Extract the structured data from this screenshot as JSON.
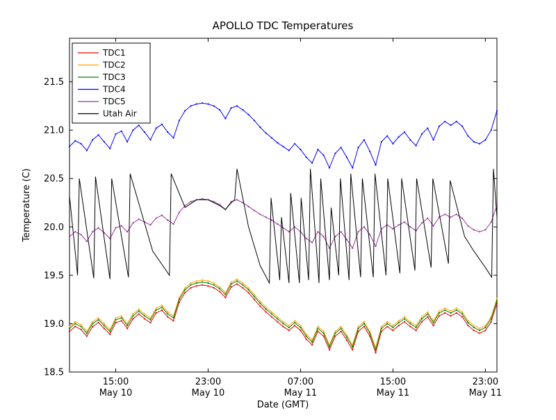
{
  "chart_data": {
    "type": "line",
    "title": "APOLLO TDC Temperatures",
    "xlabel": "Date (GMT)",
    "ylabel": "Temperature (C)",
    "x_unit": "hours from first sample shown",
    "xlim": [
      0,
      37
    ],
    "ylim": [
      18.5,
      21.95
    ],
    "grid": false,
    "legend_position": "upper left",
    "yticks": [
      18.5,
      19.0,
      19.5,
      20.0,
      20.5,
      21.0,
      21.5
    ],
    "xticks": [
      {
        "x": 4,
        "time": "15:00",
        "date": "May 10"
      },
      {
        "x": 12,
        "time": "23:00",
        "date": "May 10"
      },
      {
        "x": 20,
        "time": "07:00",
        "date": "May 11"
      },
      {
        "x": 28,
        "time": "15:00",
        "date": "May 11"
      },
      {
        "x": 36,
        "time": "23:00",
        "date": "May 11"
      }
    ],
    "series": [
      {
        "name": "TDC1",
        "color": "#e00000",
        "markers": true,
        "x": {
          "start": 0,
          "step": 0.5,
          "count": 75
        },
        "y": [
          18.92,
          18.97,
          18.94,
          18.87,
          18.97,
          19.01,
          18.95,
          18.89,
          19.01,
          19.03,
          18.95,
          19.05,
          19.1,
          19.05,
          19.01,
          19.11,
          19.14,
          19.07,
          19.03,
          19.22,
          19.32,
          19.37,
          19.39,
          19.4,
          19.39,
          19.37,
          19.33,
          19.27,
          19.38,
          19.41,
          19.37,
          19.32,
          19.25,
          19.18,
          19.12,
          19.07,
          19.02,
          18.97,
          18.93,
          18.98,
          18.93,
          18.84,
          18.78,
          18.92,
          18.87,
          18.73,
          18.87,
          18.92,
          18.83,
          18.73,
          18.92,
          18.97,
          18.87,
          18.7,
          18.92,
          18.97,
          18.93,
          18.98,
          19.02,
          18.97,
          18.93,
          19.02,
          19.07,
          18.98,
          19.08,
          19.11,
          19.08,
          19.11,
          19.07,
          18.98,
          18.93,
          18.9,
          18.93,
          19.02,
          19.21
        ]
      },
      {
        "name": "TDC2",
        "color": "#ffa500",
        "markers": true,
        "x": {
          "start": 0,
          "step": 0.5,
          "count": 75
        },
        "y": [
          18.97,
          19.02,
          18.99,
          18.92,
          19.02,
          19.06,
          19.0,
          18.94,
          19.06,
          19.08,
          19.0,
          19.1,
          19.15,
          19.1,
          19.06,
          19.16,
          19.19,
          19.12,
          19.08,
          19.27,
          19.37,
          19.42,
          19.44,
          19.45,
          19.44,
          19.42,
          19.38,
          19.32,
          19.43,
          19.46,
          19.42,
          19.37,
          19.3,
          19.23,
          19.17,
          19.12,
          19.07,
          19.02,
          18.98,
          19.03,
          18.98,
          18.89,
          18.83,
          18.97,
          18.92,
          18.78,
          18.92,
          18.97,
          18.88,
          18.78,
          18.97,
          19.02,
          18.92,
          18.75,
          18.97,
          19.02,
          18.98,
          19.03,
          19.07,
          19.02,
          18.98,
          19.07,
          19.12,
          19.03,
          19.13,
          19.16,
          19.13,
          19.16,
          19.12,
          19.03,
          18.98,
          18.95,
          18.98,
          19.07,
          19.26
        ]
      },
      {
        "name": "TDC3",
        "color": "#008000",
        "markers": true,
        "x": {
          "start": 0,
          "step": 0.5,
          "count": 75
        },
        "y": [
          18.95,
          19.0,
          18.97,
          18.9,
          19.0,
          19.04,
          18.98,
          18.92,
          19.04,
          19.06,
          18.98,
          19.08,
          19.13,
          19.08,
          19.04,
          19.14,
          19.17,
          19.1,
          19.06,
          19.25,
          19.35,
          19.4,
          19.42,
          19.43,
          19.42,
          19.4,
          19.36,
          19.3,
          19.41,
          19.44,
          19.4,
          19.35,
          19.28,
          19.21,
          19.15,
          19.1,
          19.05,
          19.0,
          18.96,
          19.01,
          18.96,
          18.87,
          18.81,
          18.95,
          18.9,
          18.76,
          18.9,
          18.95,
          18.86,
          18.76,
          18.95,
          19.0,
          18.9,
          18.73,
          18.95,
          19.0,
          18.96,
          19.01,
          19.05,
          19.0,
          18.96,
          19.05,
          19.1,
          19.01,
          19.11,
          19.14,
          19.11,
          19.14,
          19.1,
          19.01,
          18.96,
          18.93,
          18.96,
          19.05,
          19.24
        ]
      },
      {
        "name": "TDC4",
        "color": "#0000ff",
        "markers": true,
        "x": {
          "start": 0,
          "step": 0.5,
          "count": 75
        },
        "y": [
          20.83,
          20.89,
          20.86,
          20.79,
          20.9,
          20.95,
          20.88,
          20.81,
          20.96,
          20.99,
          20.88,
          21.0,
          21.05,
          20.98,
          20.9,
          21.02,
          21.06,
          20.98,
          20.92,
          21.1,
          21.2,
          21.25,
          21.27,
          21.28,
          21.27,
          21.25,
          21.21,
          21.12,
          21.23,
          21.25,
          21.21,
          21.16,
          21.1,
          21.03,
          20.97,
          20.92,
          20.87,
          20.83,
          20.79,
          20.86,
          20.8,
          20.72,
          20.66,
          20.8,
          20.74,
          20.61,
          20.76,
          20.82,
          20.72,
          20.61,
          20.82,
          20.9,
          20.78,
          20.64,
          20.88,
          20.94,
          20.86,
          20.93,
          20.98,
          20.9,
          20.84,
          20.96,
          21.02,
          20.9,
          21.04,
          21.09,
          21.05,
          21.09,
          21.04,
          20.94,
          20.88,
          20.86,
          20.9,
          21.0,
          21.2
        ]
      },
      {
        "name": "TDC5",
        "color": "#993399",
        "markers": true,
        "x": {
          "start": 0,
          "step": 0.5,
          "count": 75
        },
        "y": [
          19.9,
          19.95,
          19.92,
          19.85,
          19.95,
          19.99,
          19.94,
          19.88,
          19.99,
          20.01,
          19.95,
          20.04,
          20.08,
          20.05,
          20.02,
          20.09,
          20.12,
          20.07,
          20.03,
          20.15,
          20.22,
          20.26,
          20.28,
          20.29,
          20.28,
          20.26,
          20.23,
          20.18,
          20.26,
          20.28,
          20.25,
          20.21,
          20.17,
          20.13,
          20.1,
          20.07,
          20.03,
          19.99,
          19.95,
          20.0,
          19.95,
          19.88,
          19.84,
          19.95,
          19.9,
          19.78,
          19.9,
          19.95,
          19.87,
          19.78,
          19.95,
          20.0,
          19.92,
          19.8,
          19.98,
          20.02,
          19.98,
          20.02,
          20.05,
          20.0,
          19.96,
          20.04,
          20.09,
          20.01,
          20.1,
          20.13,
          20.1,
          20.13,
          20.09,
          20.01,
          19.97,
          19.95,
          19.97,
          20.05,
          20.22
        ]
      },
      {
        "name": "Utah Air",
        "color": "#000000",
        "markers": false,
        "x": [
          0,
          0.7,
          0.85,
          2.1,
          2.25,
          3.5,
          3.65,
          5.1,
          5.25,
          7.2,
          8.65,
          8.8,
          10,
          11,
          12,
          13,
          13.5,
          14,
          14.3,
          14.5,
          15.5,
          16.5,
          17.3,
          17.45,
          18.2,
          18.35,
          19.0,
          19.15,
          19.9,
          20.05,
          20.7,
          20.85,
          21.6,
          21.75,
          22.5,
          22.65,
          23.3,
          23.45,
          24.2,
          24.35,
          25.2,
          25.35,
          26.3,
          26.45,
          27.4,
          27.55,
          28.6,
          28.75,
          29.9,
          30.05,
          31.3,
          31.45,
          32.8,
          32.95,
          34.2,
          35.0,
          36.0,
          36.55,
          36.7,
          37
        ],
        "y": [
          20.32,
          19.5,
          20.5,
          19.47,
          20.52,
          19.46,
          20.5,
          19.48,
          20.55,
          19.75,
          19.5,
          20.55,
          20.2,
          20.28,
          20.28,
          20.22,
          20.18,
          20.25,
          20.28,
          20.6,
          20.0,
          19.6,
          19.42,
          20.3,
          19.45,
          20.1,
          19.42,
          20.35,
          19.42,
          20.3,
          19.45,
          20.6,
          19.42,
          20.5,
          19.45,
          20.2,
          19.5,
          20.5,
          19.45,
          20.55,
          19.48,
          20.5,
          19.48,
          20.55,
          19.5,
          20.5,
          19.52,
          20.5,
          19.55,
          20.5,
          19.58,
          20.5,
          19.62,
          20.48,
          19.9,
          19.75,
          19.58,
          19.48,
          20.6,
          20.1
        ]
      }
    ]
  }
}
